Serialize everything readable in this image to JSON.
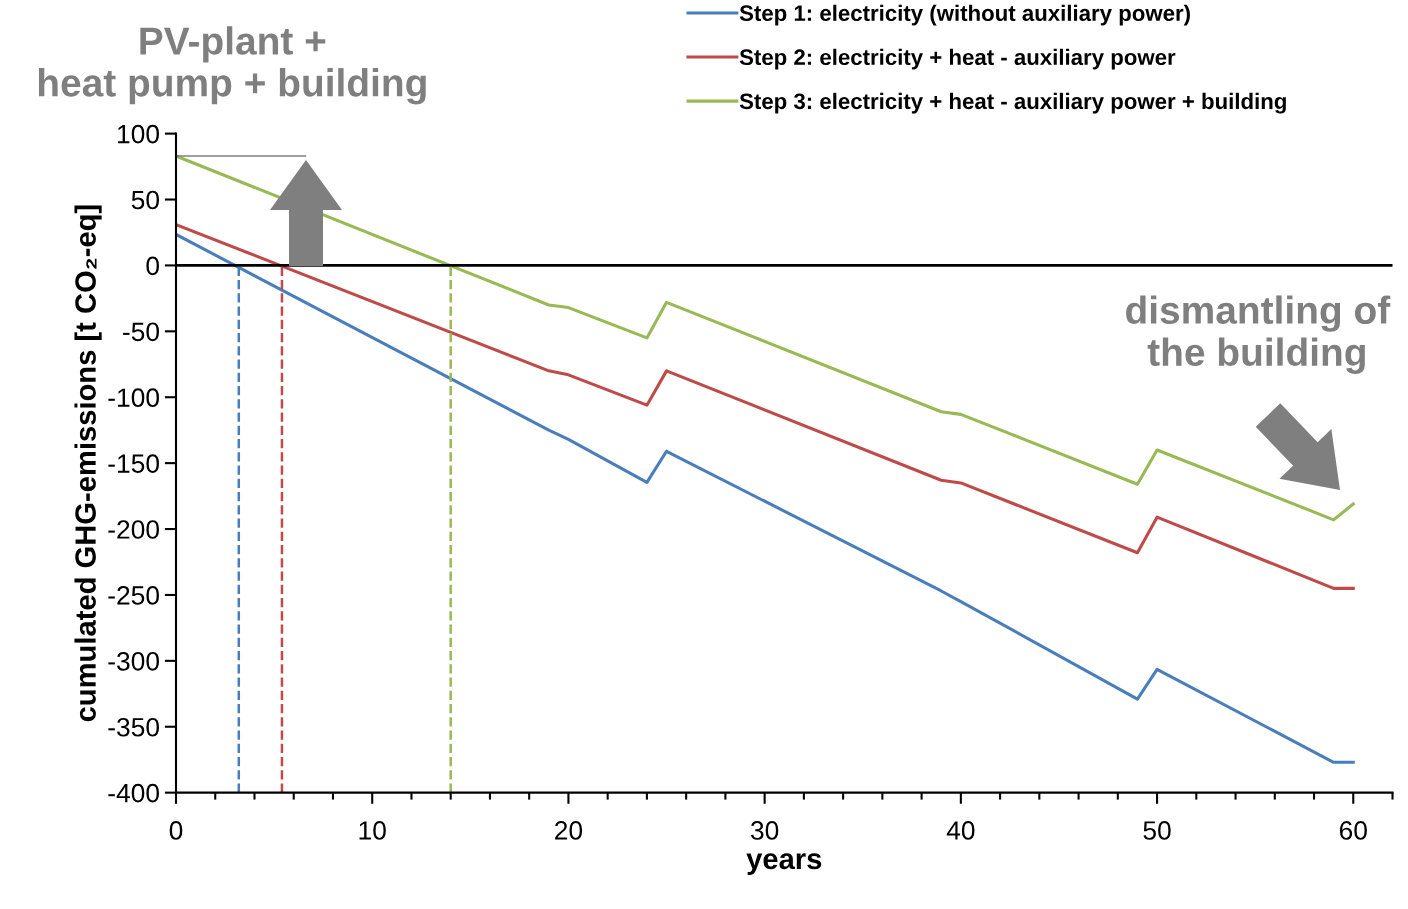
{
  "chart_data": {
    "type": "line",
    "xlabel": "years",
    "ylabel": "cumulated GHG-emissions [t CO₂-eq]",
    "xlim": [
      0,
      62
    ],
    "xticks": [
      0,
      10,
      20,
      30,
      40,
      50,
      60
    ],
    "ylim": [
      -400,
      100
    ],
    "yticks": [
      -400,
      -350,
      -300,
      -250,
      -200,
      -150,
      -100,
      -50,
      0,
      50,
      100
    ],
    "grid": false,
    "legend": "top right",
    "marker": "none",
    "line_style": "solid",
    "series": [
      {
        "name": "Step 1: electricity (without auxiliary power)",
        "color": "#4a7ebb",
        "x": [
          0,
          19,
          20,
          24,
          25,
          39,
          40,
          49,
          50,
          59,
          60
        ],
        "values": [
          23.5,
          -125,
          -132,
          -164.6,
          -141,
          -247,
          -255,
          -329,
          -306.5,
          -377,
          -377
        ]
      },
      {
        "name": "Step 2: electricity + heat - auxiliary power",
        "color": "#be4b48",
        "x": [
          0,
          19,
          20,
          24,
          25,
          39,
          40,
          49,
          50,
          59,
          60
        ],
        "values": [
          31,
          -80,
          -83,
          -106,
          -80,
          -163,
          -165,
          -218,
          -191,
          -245,
          -245
        ]
      },
      {
        "name": "Step 3: electricity + heat - auxiliary power + building",
        "color": "#98b954",
        "x": [
          0,
          19,
          20,
          24,
          25,
          39,
          40,
          49,
          50,
          59,
          60
        ],
        "values": [
          83,
          -30,
          -32,
          -55,
          -28,
          -111,
          -113,
          -166,
          -140,
          -193,
          -181
        ]
      }
    ],
    "ref_lines": [
      {
        "axis": "y",
        "value": 0,
        "color": "#000000",
        "line_style": "solid"
      },
      {
        "axis": "x",
        "value": 3.2,
        "color": "#4a7ebb",
        "line_style": "dashed"
      },
      {
        "axis": "x",
        "value": 5.4,
        "color": "#be4b48",
        "line_style": "dashed"
      },
      {
        "axis": "x",
        "value": 14,
        "color": "#98b954",
        "line_style": "dashed"
      }
    ],
    "annotations": [
      "PV-plant +\nheat pump + building",
      "dismantling of\nthe building"
    ]
  }
}
